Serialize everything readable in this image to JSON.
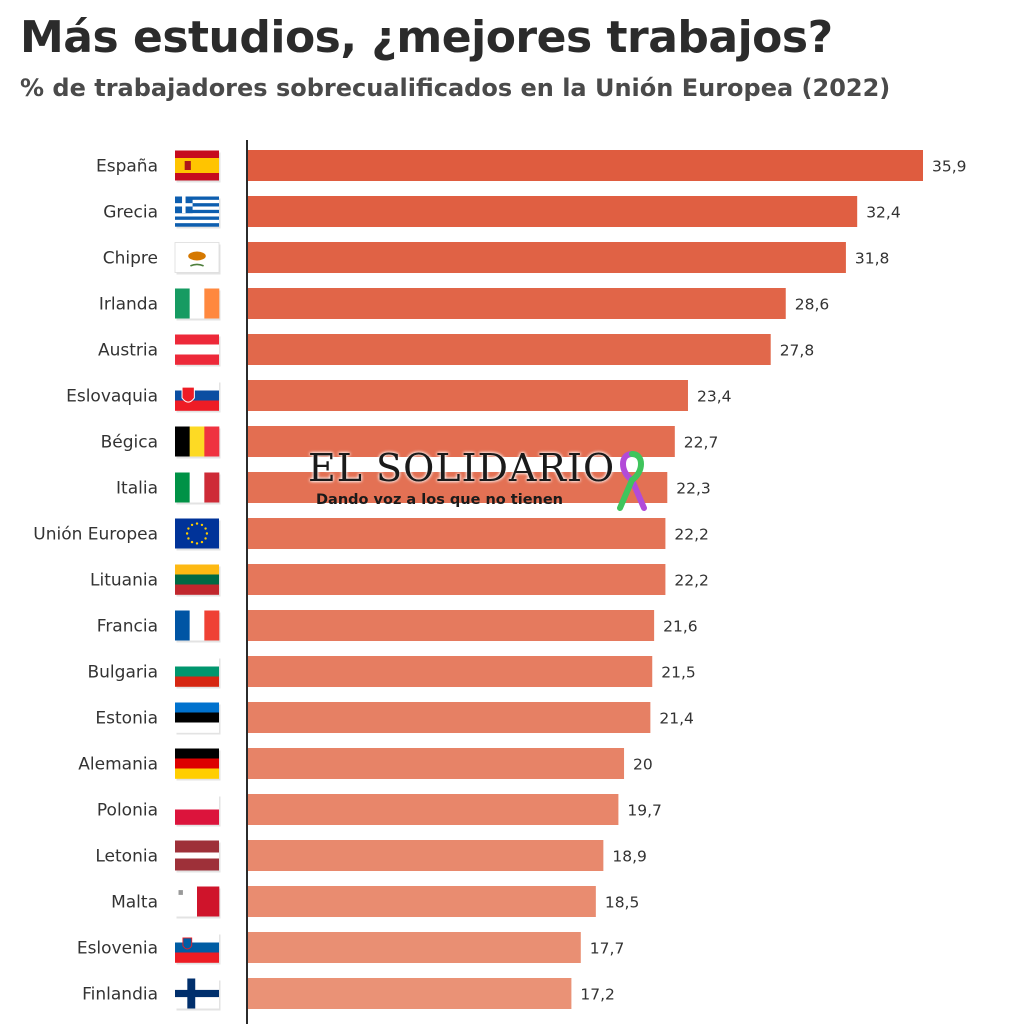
{
  "header": {
    "title": "Más estudios, ¿mejores trabajos?",
    "subtitle": "% de trabajadores sobrecualificados en la Unión Europea (2022)"
  },
  "watermark": {
    "name": "EL SOLIDARIO",
    "tagline": "Dando voz a los que no tienen",
    "ribbon_colors": [
      "#b24bd8",
      "#3fc45c"
    ]
  },
  "chart_data": {
    "type": "bar",
    "orientation": "horizontal",
    "title": "Más estudios, ¿mejores trabajos?",
    "subtitle": "% de trabajadores sobrecualificados en la Unión Europea (2022)",
    "categories": [
      "España",
      "Grecia",
      "Chipre",
      "Irlanda",
      "Austria",
      "Eslovaquia",
      "Bégica",
      "Italia",
      "Unión Europea",
      "Lituania",
      "Francia",
      "Bulgaria",
      "Estonia",
      "Alemania",
      "Polonia",
      "Letonia",
      "Malta",
      "Eslovenia",
      "Finlandia"
    ],
    "values": [
      35.9,
      32.4,
      31.8,
      28.6,
      27.8,
      23.4,
      22.7,
      22.3,
      22.2,
      22.2,
      21.6,
      21.5,
      21.4,
      20,
      19.7,
      18.9,
      18.5,
      17.7,
      17.2
    ],
    "value_labels": [
      "35,9",
      "32,4",
      "31,8",
      "28,6",
      "27,8",
      "23,4",
      "22,7",
      "22,3",
      "22,2",
      "22,2",
      "21,6",
      "21,5",
      "21,4",
      "20",
      "19,7",
      "18,9",
      "18,5",
      "17,7",
      "17,2"
    ],
    "flag_icons": [
      "flag-spain-icon",
      "flag-greece-icon",
      "flag-cyprus-icon",
      "flag-ireland-icon",
      "flag-austria-icon",
      "flag-slovakia-icon",
      "flag-belgium-icon",
      "flag-italy-icon",
      "flag-european-union-icon",
      "flag-lithuania-icon",
      "flag-france-icon",
      "flag-bulgaria-icon",
      "flag-estonia-icon",
      "flag-germany-icon",
      "flag-poland-icon",
      "flag-latvia-icon",
      "flag-malta-icon",
      "flag-slovenia-icon",
      "flag-finland-icon"
    ],
    "bar_color_start": "#df5c3f",
    "bar_color_end": "#ea9276",
    "xlim": [
      0,
      35.9
    ],
    "grid": false,
    "legend": "none"
  }
}
